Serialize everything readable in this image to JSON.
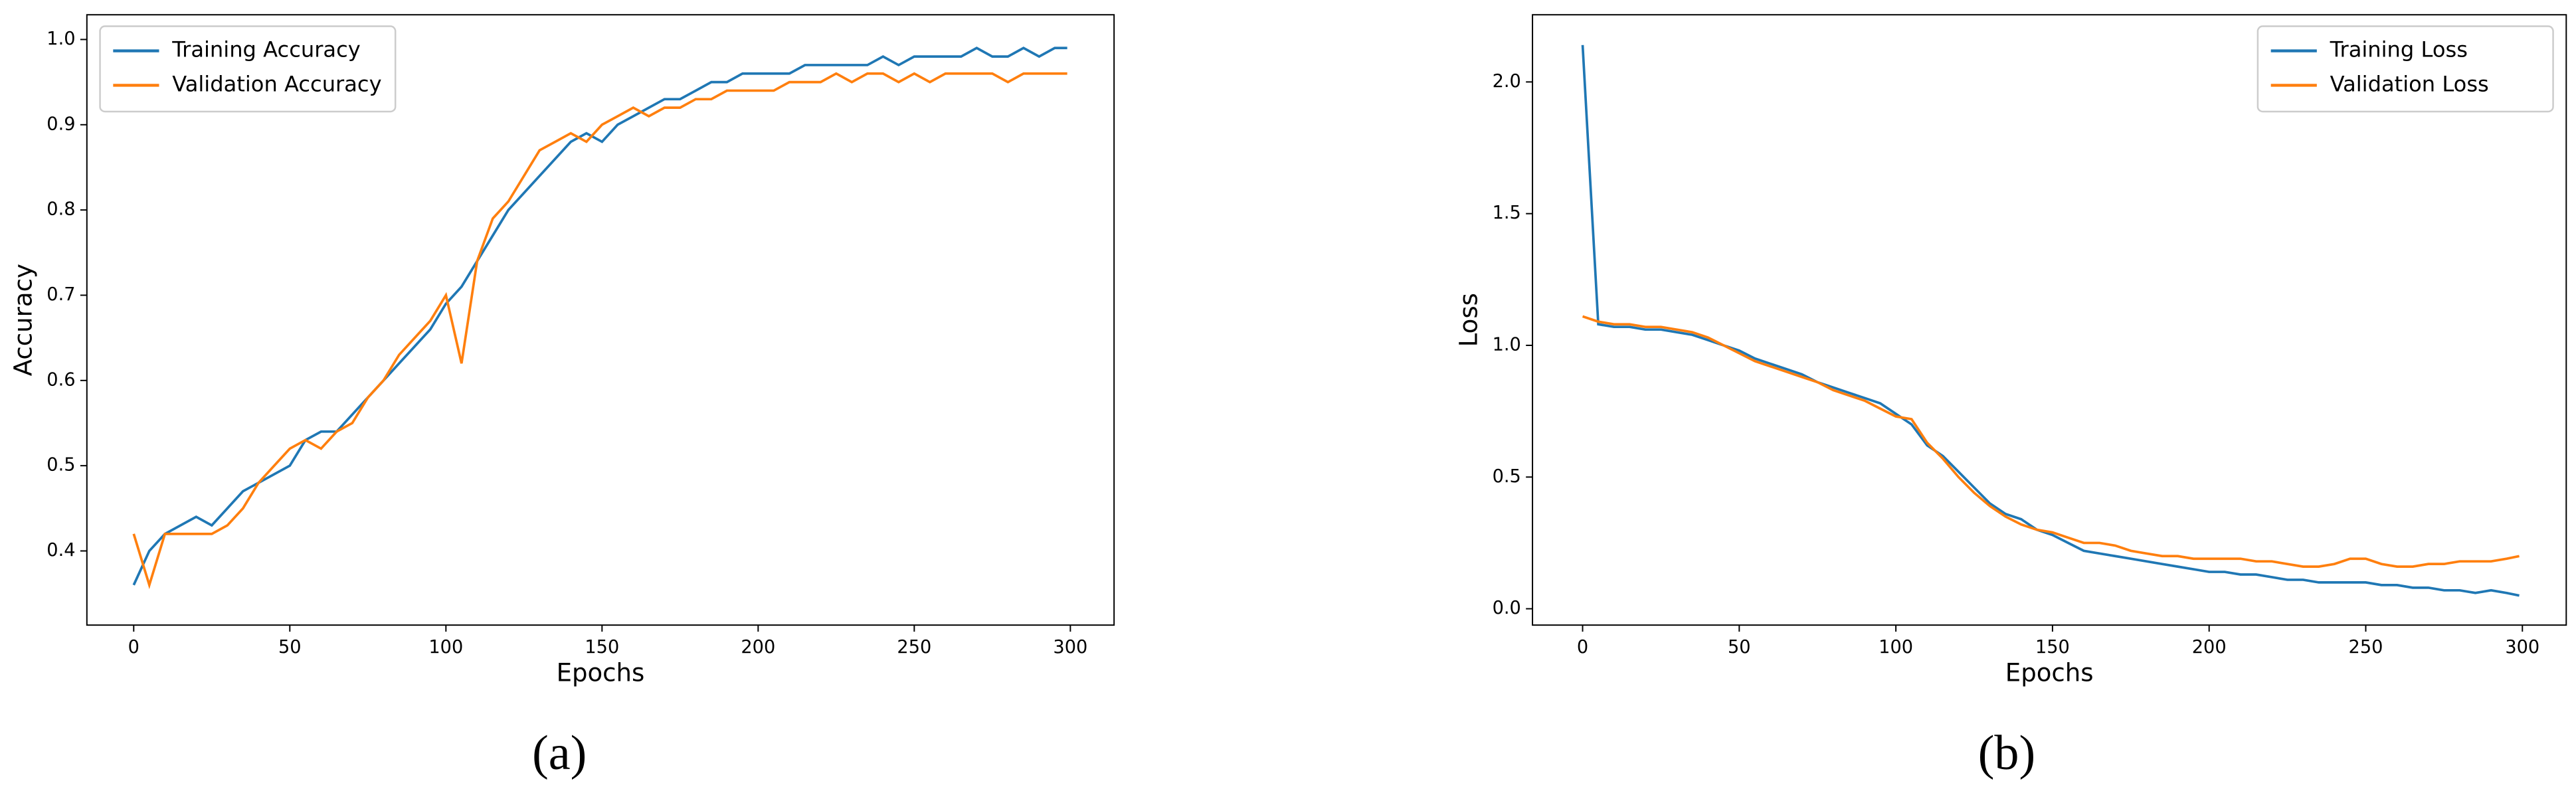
{
  "chart_data": [
    {
      "type": "line",
      "caption": "(a)",
      "xlabel": "Epochs",
      "ylabel": "Accuracy",
      "legend": "upper left",
      "x": [
        0,
        5,
        10,
        15,
        20,
        25,
        30,
        35,
        40,
        45,
        50,
        55,
        60,
        65,
        70,
        75,
        80,
        85,
        90,
        95,
        100,
        105,
        110,
        115,
        120,
        125,
        130,
        135,
        140,
        145,
        150,
        155,
        160,
        165,
        170,
        175,
        180,
        185,
        190,
        195,
        200,
        205,
        210,
        215,
        220,
        225,
        230,
        235,
        240,
        245,
        250,
        255,
        260,
        265,
        270,
        275,
        280,
        285,
        290,
        295,
        299
      ],
      "series": [
        {
          "name": "Training Accuracy",
          "color": "#1f77b4",
          "values": [
            0.36,
            0.4,
            0.42,
            0.43,
            0.44,
            0.43,
            0.45,
            0.47,
            0.48,
            0.49,
            0.5,
            0.53,
            0.54,
            0.54,
            0.56,
            0.58,
            0.6,
            0.62,
            0.64,
            0.66,
            0.69,
            0.71,
            0.74,
            0.77,
            0.8,
            0.82,
            0.84,
            0.86,
            0.88,
            0.89,
            0.88,
            0.9,
            0.91,
            0.92,
            0.93,
            0.93,
            0.94,
            0.95,
            0.95,
            0.96,
            0.96,
            0.96,
            0.96,
            0.97,
            0.97,
            0.97,
            0.97,
            0.97,
            0.98,
            0.97,
            0.98,
            0.98,
            0.98,
            0.98,
            0.99,
            0.98,
            0.98,
            0.99,
            0.98,
            0.99,
            0.99
          ]
        },
        {
          "name": "Validation Accuracy",
          "color": "#ff7f0e",
          "values": [
            0.42,
            0.36,
            0.42,
            0.42,
            0.42,
            0.42,
            0.43,
            0.45,
            0.48,
            0.5,
            0.52,
            0.53,
            0.52,
            0.54,
            0.55,
            0.58,
            0.6,
            0.63,
            0.65,
            0.67,
            0.7,
            0.62,
            0.74,
            0.79,
            0.81,
            0.84,
            0.87,
            0.88,
            0.89,
            0.88,
            0.9,
            0.91,
            0.92,
            0.91,
            0.92,
            0.92,
            0.93,
            0.93,
            0.94,
            0.94,
            0.94,
            0.94,
            0.95,
            0.95,
            0.95,
            0.96,
            0.95,
            0.96,
            0.96,
            0.95,
            0.96,
            0.95,
            0.96,
            0.96,
            0.96,
            0.96,
            0.95,
            0.96,
            0.96,
            0.96,
            0.96
          ]
        }
      ],
      "xlim": [
        -15,
        314
      ],
      "ylim": [
        0.313,
        1.029
      ],
      "xticks": [
        0,
        50,
        100,
        150,
        200,
        250,
        300
      ],
      "yticks": [
        0.4,
        0.5,
        0.6,
        0.7,
        0.8,
        0.9,
        {
          "value": 1,
          "label": "1.0"
        }
      ]
    },
    {
      "type": "line",
      "caption": "(b)",
      "xlabel": "Epochs",
      "ylabel": "Loss",
      "legend": "upper right",
      "x": [
        0,
        5,
        10,
        15,
        20,
        25,
        30,
        35,
        40,
        45,
        50,
        55,
        60,
        65,
        70,
        75,
        80,
        85,
        90,
        95,
        100,
        105,
        110,
        115,
        120,
        125,
        130,
        135,
        140,
        145,
        150,
        155,
        160,
        165,
        170,
        175,
        180,
        185,
        190,
        195,
        200,
        205,
        210,
        215,
        220,
        225,
        230,
        235,
        240,
        245,
        250,
        255,
        260,
        265,
        270,
        275,
        280,
        285,
        290,
        295,
        299
      ],
      "series": [
        {
          "name": "Training Loss",
          "color": "#1f77b4",
          "values": [
            2.14,
            1.08,
            1.07,
            1.07,
            1.06,
            1.06,
            1.05,
            1.04,
            1.02,
            1.0,
            0.98,
            0.95,
            0.93,
            0.91,
            0.89,
            0.86,
            0.84,
            0.82,
            0.8,
            0.78,
            0.74,
            0.7,
            0.62,
            0.58,
            0.52,
            0.46,
            0.4,
            0.36,
            0.34,
            0.3,
            0.28,
            0.25,
            0.22,
            0.21,
            0.2,
            0.19,
            0.18,
            0.17,
            0.16,
            0.15,
            0.14,
            0.14,
            0.13,
            0.13,
            0.12,
            0.11,
            0.11,
            0.1,
            0.1,
            0.1,
            0.1,
            0.09,
            0.09,
            0.08,
            0.08,
            0.07,
            0.07,
            0.06,
            0.07,
            0.06,
            0.05
          ]
        },
        {
          "name": "Validation Loss",
          "color": "#ff7f0e",
          "values": [
            1.11,
            1.09,
            1.08,
            1.08,
            1.07,
            1.07,
            1.06,
            1.05,
            1.03,
            1.0,
            0.97,
            0.94,
            0.92,
            0.9,
            0.88,
            0.86,
            0.83,
            0.81,
            0.79,
            0.76,
            0.73,
            0.72,
            0.63,
            0.57,
            0.5,
            0.44,
            0.39,
            0.35,
            0.32,
            0.3,
            0.29,
            0.27,
            0.25,
            0.25,
            0.24,
            0.22,
            0.21,
            0.2,
            0.2,
            0.19,
            0.19,
            0.19,
            0.19,
            0.18,
            0.18,
            0.17,
            0.16,
            0.16,
            0.17,
            0.19,
            0.19,
            0.17,
            0.16,
            0.16,
            0.17,
            0.17,
            0.18,
            0.18,
            0.18,
            0.19,
            0.2
          ]
        }
      ],
      "xlim": [
        -16,
        314
      ],
      "ylim": [
        -0.062,
        2.255
      ],
      "xticks": [
        0,
        50,
        100,
        150,
        200,
        250,
        300
      ],
      "yticks": [
        {
          "value": 0,
          "label": "0.0"
        },
        0.5,
        {
          "value": 1,
          "label": "1.0"
        },
        1.5,
        {
          "value": 2,
          "label": "2.0"
        }
      ]
    }
  ]
}
